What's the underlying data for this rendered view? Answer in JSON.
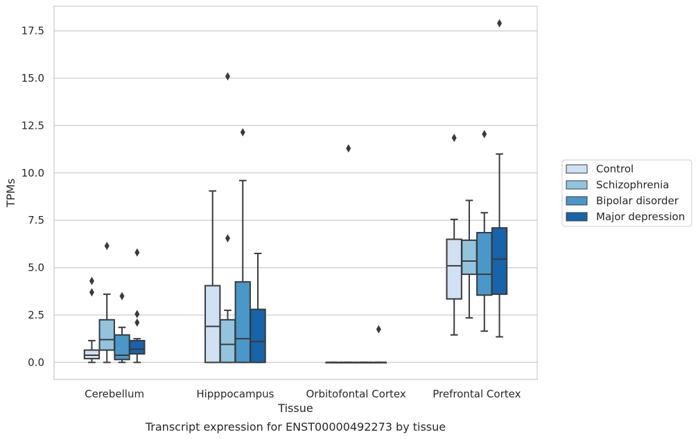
{
  "chart_data": {
    "type": "box",
    "xlabel": "Tissue",
    "ylabel": "TPMs",
    "caption": "Transcript expression for ENST00000492273 by tissue",
    "ylim": [
      -0.9,
      18.8
    ],
    "yticks": [
      0.0,
      2.5,
      5.0,
      7.5,
      10.0,
      12.5,
      15.0,
      17.5
    ],
    "ytick_labels": [
      "0.0",
      "2.5",
      "5.0",
      "7.5",
      "10.0",
      "12.5",
      "15.0",
      "17.5"
    ],
    "grid": "horizontal",
    "legend_position": "right",
    "categories": [
      "Cerebellum",
      "Hipppocampus",
      "Orbitofontal Cortex",
      "Prefrontal Cortex"
    ],
    "series": [
      {
        "name": "Control",
        "color": "#cfe1f2",
        "boxes": [
          {
            "whislo": 0.0,
            "q1": 0.2,
            "med": 0.38,
            "q3": 0.65,
            "whishi": 1.15,
            "fliers": [
              3.7,
              4.3
            ]
          },
          {
            "whislo": 0.0,
            "q1": 0.0,
            "med": 1.9,
            "q3": 4.05,
            "whishi": 9.05,
            "fliers": []
          },
          {
            "whislo": 0.0,
            "q1": 0.0,
            "med": 0.0,
            "q3": 0.0,
            "whishi": 0.0,
            "fliers": []
          },
          {
            "whislo": 1.45,
            "q1": 3.35,
            "med": 5.1,
            "q3": 6.5,
            "whishi": 7.55,
            "fliers": [
              11.85
            ]
          }
        ]
      },
      {
        "name": "Schizophrenia",
        "color": "#93c4de",
        "boxes": [
          {
            "whislo": 0.0,
            "q1": 0.65,
            "med": 1.2,
            "q3": 2.25,
            "whishi": 3.6,
            "fliers": [
              6.15
            ]
          },
          {
            "whislo": 0.0,
            "q1": 0.0,
            "med": 0.95,
            "q3": 2.25,
            "whishi": 2.75,
            "fliers": [
              6.55,
              15.1
            ]
          },
          {
            "whislo": 0.0,
            "q1": 0.0,
            "med": 0.0,
            "q3": 0.0,
            "whishi": 0.0,
            "fliers": [
              11.3
            ]
          },
          {
            "whislo": 2.35,
            "q1": 4.65,
            "med": 5.35,
            "q3": 6.45,
            "whishi": 8.55,
            "fliers": []
          }
        ]
      },
      {
        "name": "Bipolar disorder",
        "color": "#4a97c9",
        "boxes": [
          {
            "whislo": 0.0,
            "q1": 0.15,
            "med": 0.38,
            "q3": 1.45,
            "whishi": 1.85,
            "fliers": [
              3.5
            ]
          },
          {
            "whislo": 0.0,
            "q1": 0.0,
            "med": 1.25,
            "q3": 4.25,
            "whishi": 9.6,
            "fliers": [
              12.15
            ]
          },
          {
            "whislo": 0.0,
            "q1": 0.0,
            "med": 0.0,
            "q3": 0.0,
            "whishi": 0.0,
            "fliers": []
          },
          {
            "whislo": 1.65,
            "q1": 3.55,
            "med": 4.65,
            "q3": 6.85,
            "whishi": 7.9,
            "fliers": [
              12.05
            ]
          }
        ]
      },
      {
        "name": "Major depression",
        "color": "#1764ab",
        "boxes": [
          {
            "whislo": 0.0,
            "q1": 0.45,
            "med": 0.7,
            "q3": 1.15,
            "whishi": 1.25,
            "fliers": [
              2.1,
              2.55,
              5.8
            ]
          },
          {
            "whislo": 0.0,
            "q1": 0.0,
            "med": 1.1,
            "q3": 2.8,
            "whishi": 5.75,
            "fliers": []
          },
          {
            "whislo": 0.0,
            "q1": 0.0,
            "med": 0.0,
            "q3": 0.0,
            "whishi": 0.0,
            "fliers": [
              1.75
            ]
          },
          {
            "whislo": 1.35,
            "q1": 3.6,
            "med": 5.45,
            "q3": 7.1,
            "whishi": 11.0,
            "fliers": [
              17.9
            ]
          }
        ]
      }
    ]
  }
}
